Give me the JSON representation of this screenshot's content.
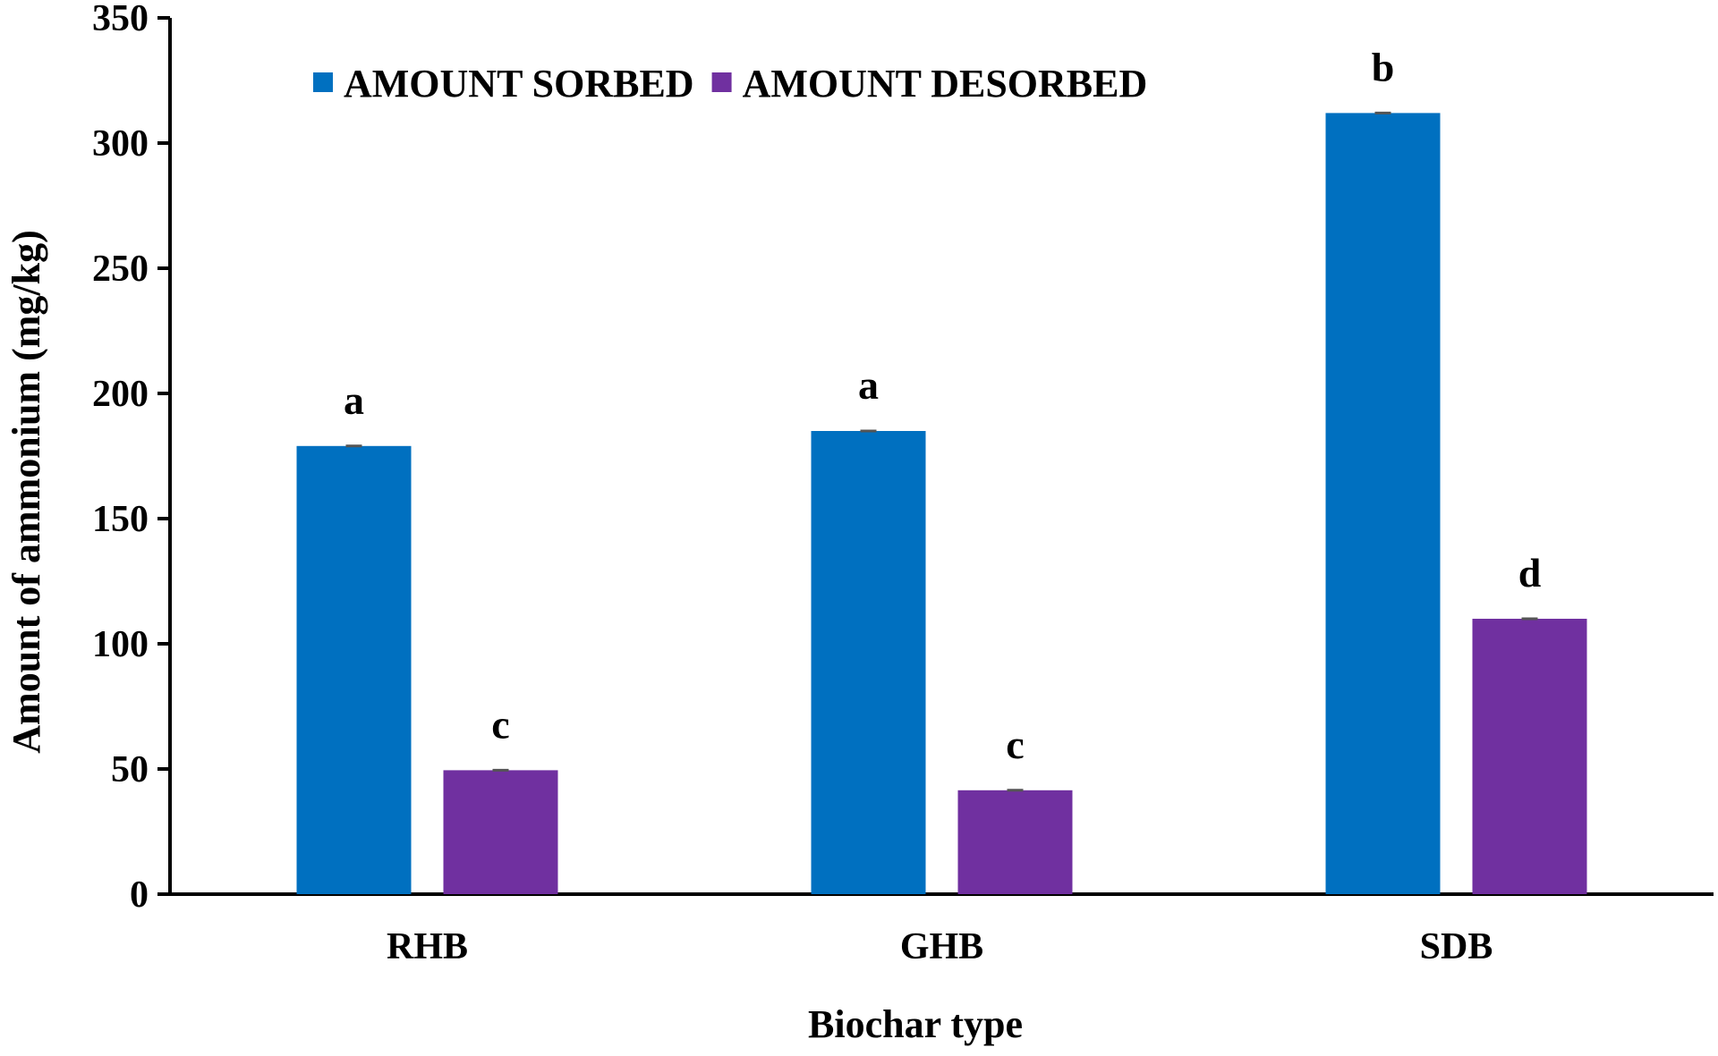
{
  "chart_data": {
    "type": "bar",
    "title": "",
    "xlabel": "Biochar type",
    "ylabel": "Amount of ammonium (mg/kg)",
    "ylim": [
      0,
      350
    ],
    "yticks": [
      0,
      50,
      100,
      150,
      200,
      250,
      300,
      350
    ],
    "categories": [
      "RHB",
      "GHB",
      "SDB"
    ],
    "series": [
      {
        "name": "AMOUNT SORBED",
        "color": "#0070c0",
        "values": [
          179,
          185,
          312
        ],
        "letters": [
          "a",
          "a",
          "b"
        ]
      },
      {
        "name": "AMOUNT DESORBED",
        "color": "#7030a0",
        "values": [
          49.5,
          41.5,
          110
        ],
        "letters": [
          "c",
          "c",
          "d"
        ]
      }
    ],
    "legend": "top-left",
    "grid": false
  }
}
